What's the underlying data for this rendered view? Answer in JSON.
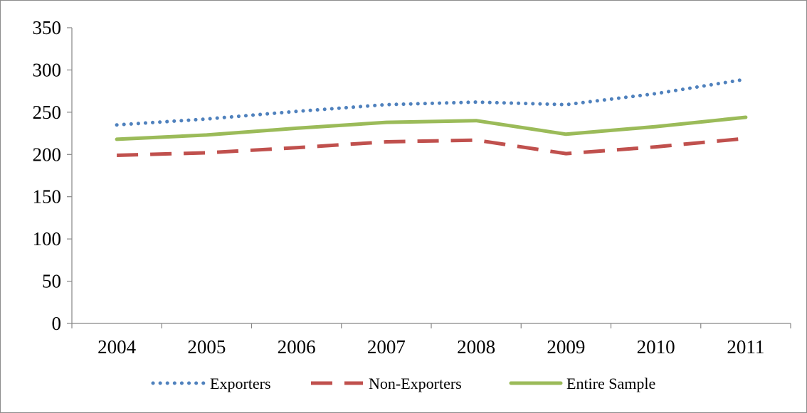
{
  "chart_data": {
    "type": "line",
    "title": "",
    "xlabel": "",
    "ylabel": "",
    "categories": [
      "2004",
      "2005",
      "2006",
      "2007",
      "2008",
      "2009",
      "2010",
      "2011"
    ],
    "ylim": [
      0,
      350
    ],
    "yticks": [
      "0",
      "50",
      "100",
      "150",
      "200",
      "250",
      "300",
      "350"
    ],
    "grid": false,
    "legend_position": "bottom",
    "series": [
      {
        "name": "Exporters",
        "values": [
          235,
          242,
          251,
          259,
          262,
          259,
          272,
          289
        ],
        "color": "#4f81bd",
        "style": "dotted"
      },
      {
        "name": "Non-Exporters",
        "values": [
          199,
          202,
          208,
          215,
          217,
          201,
          209,
          219
        ],
        "color": "#c0504d",
        "style": "dashed"
      },
      {
        "name": "Entire Sample",
        "values": [
          218,
          223,
          231,
          238,
          240,
          224,
          233,
          244
        ],
        "color": "#9bbb59",
        "style": "solid"
      }
    ]
  }
}
